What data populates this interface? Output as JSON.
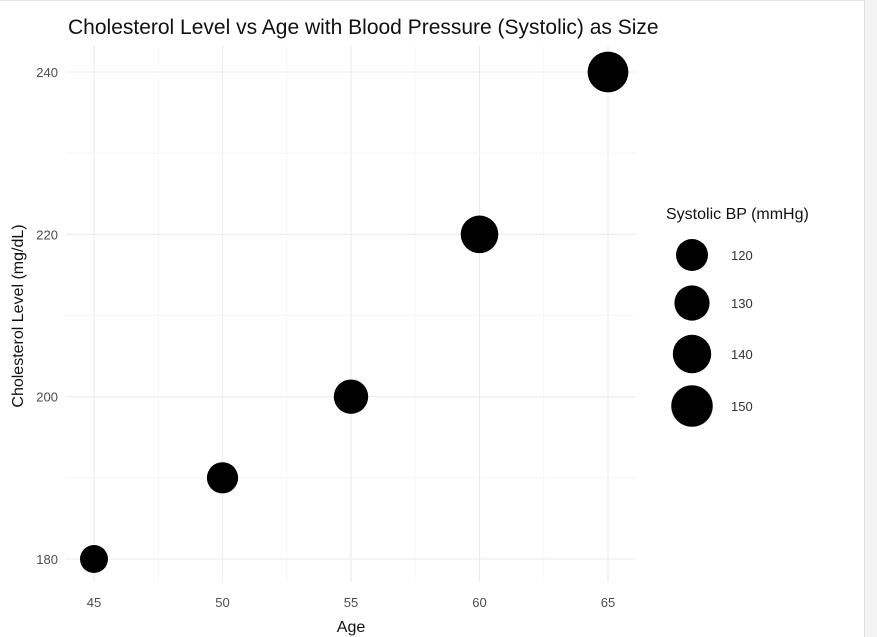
{
  "chart_data": {
    "type": "scatter",
    "title": "Cholesterol Level vs Age with Blood Pressure (Systolic) as Size",
    "xlabel": "Age",
    "ylabel": "Cholesterol Level (mg/dL)",
    "x_ticks": [
      "45",
      "50",
      "55",
      "60",
      "65"
    ],
    "y_ticks": [
      "180",
      "200",
      "220",
      "240"
    ],
    "xlim": [
      45,
      65
    ],
    "ylim": [
      180,
      240
    ],
    "grid": true,
    "points": [
      {
        "x": 45,
        "y": 180,
        "size": 120
      },
      {
        "x": 50,
        "y": 190,
        "size": 130
      },
      {
        "x": 55,
        "y": 200,
        "size": 140
      },
      {
        "x": 60,
        "y": 220,
        "size": 150
      },
      {
        "x": 65,
        "y": 240,
        "size": 160
      }
    ],
    "legend": {
      "title": "Systolic BP (mmHg)",
      "placement": "right",
      "entries": [
        {
          "label": "120",
          "size": 120
        },
        {
          "label": "130",
          "size": 130
        },
        {
          "label": "140",
          "size": 140
        },
        {
          "label": "150",
          "size": 150
        }
      ]
    },
    "point_color": "#000000",
    "grid_color": "#ebebeb"
  }
}
